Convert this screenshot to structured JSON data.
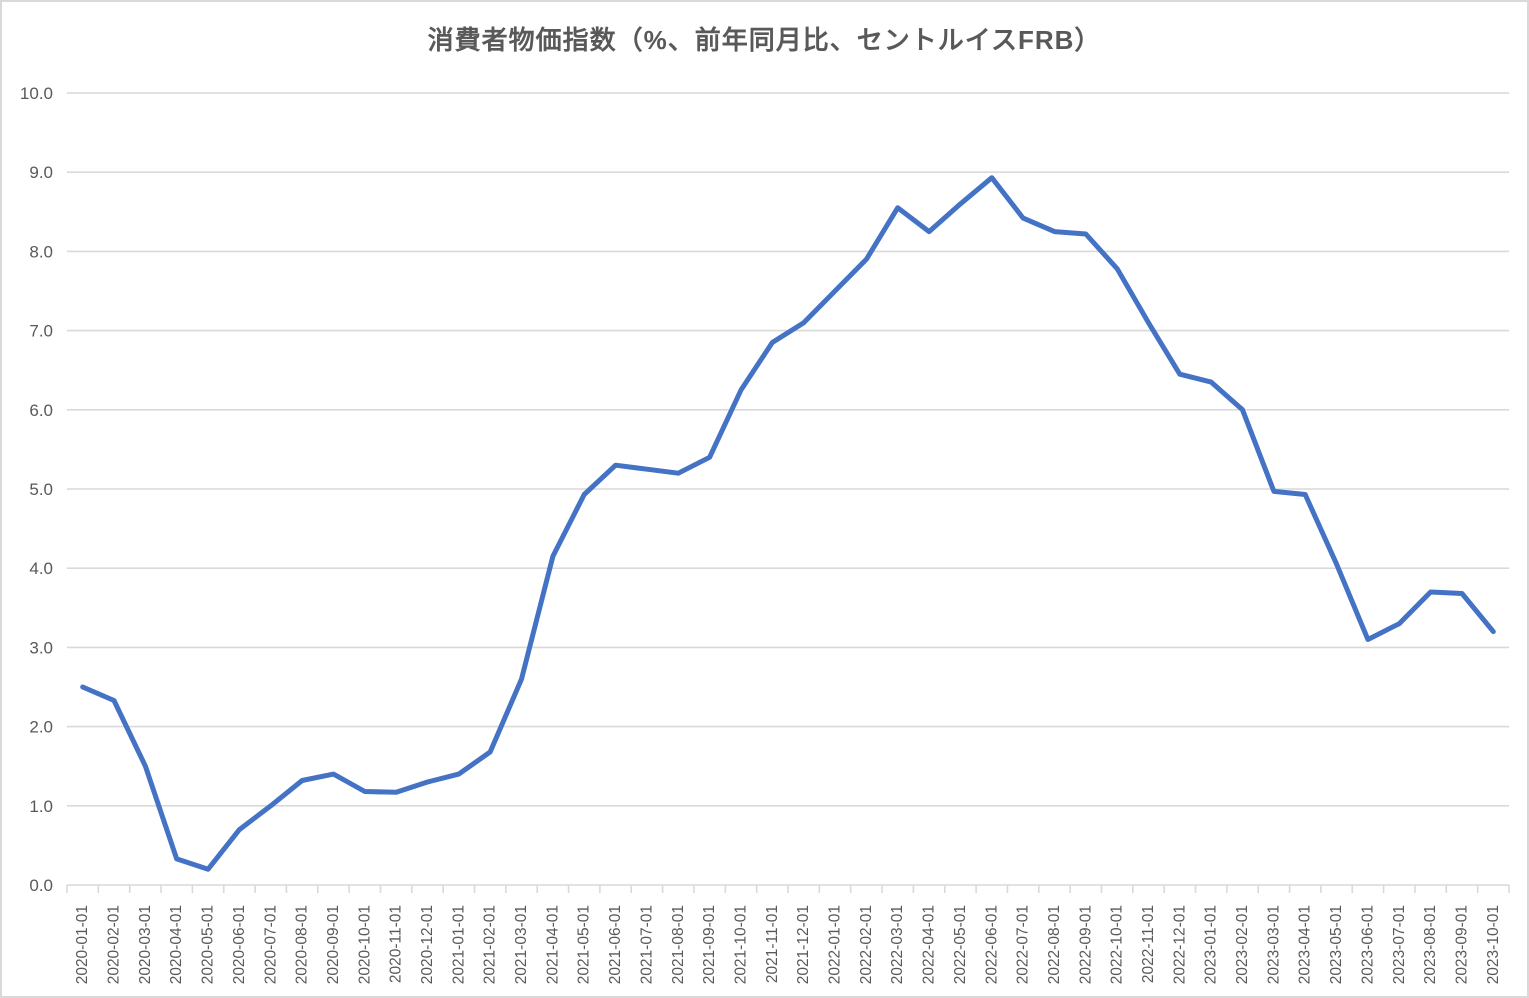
{
  "chart": {
    "title": "消費者物価指数（%、前年同月比、セントルイスFRB）",
    "colors": {
      "line": "#4472C4",
      "grid": "#D9D9D9",
      "axis": "#D9D9D9",
      "tick": "#BFBFBF",
      "label": "#595959",
      "title": "#595959",
      "background": "#FFFFFF"
    }
  },
  "chart_data": {
    "type": "line",
    "title": "消費者物価指数（%、前年同月比、セントルイスFRB）",
    "x": [
      "2020-01-01",
      "2020-02-01",
      "2020-03-01",
      "2020-04-01",
      "2020-05-01",
      "2020-06-01",
      "2020-07-01",
      "2020-08-01",
      "2020-09-01",
      "2020-10-01",
      "2020-11-01",
      "2020-12-01",
      "2021-01-01",
      "2021-02-01",
      "2021-03-01",
      "2021-04-01",
      "2021-05-01",
      "2021-06-01",
      "2021-07-01",
      "2021-08-01",
      "2021-09-01",
      "2021-10-01",
      "2021-11-01",
      "2021-12-01",
      "2022-01-01",
      "2022-02-01",
      "2022-03-01",
      "2022-04-01",
      "2022-05-01",
      "2022-06-01",
      "2022-07-01",
      "2022-08-01",
      "2022-09-01",
      "2022-10-01",
      "2022-11-01",
      "2022-12-01",
      "2023-01-01",
      "2023-02-01",
      "2023-03-01",
      "2023-04-01",
      "2023-05-01",
      "2023-06-01",
      "2023-07-01",
      "2023-08-01",
      "2023-09-01",
      "2023-10-01"
    ],
    "values": [
      2.5,
      2.33,
      1.5,
      0.33,
      0.2,
      0.7,
      1.0,
      1.32,
      1.4,
      1.18,
      1.17,
      1.3,
      1.4,
      1.68,
      2.6,
      4.15,
      4.93,
      5.3,
      5.25,
      5.2,
      5.4,
      6.25,
      6.85,
      7.1,
      7.5,
      7.9,
      8.55,
      8.25,
      8.6,
      8.93,
      8.42,
      8.25,
      8.22,
      7.78,
      7.1,
      6.45,
      6.35,
      6.0,
      4.97,
      4.93,
      4.05,
      3.1,
      3.3,
      3.7,
      3.68,
      3.2
    ],
    "xlabel": "",
    "ylabel": "",
    "ylim": [
      0,
      10
    ],
    "y_tick_step": 1.0,
    "y_tick_labels": [
      "10.0",
      "9.0",
      "8.0",
      "7.0",
      "6.0",
      "5.0",
      "4.0",
      "3.0",
      "2.0",
      "1.0",
      "0.0"
    ],
    "grid": true,
    "legend": false
  }
}
